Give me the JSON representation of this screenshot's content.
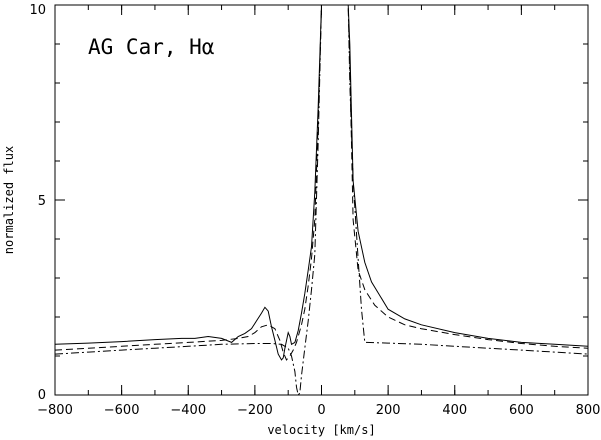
{
  "chart_data": {
    "type": "line",
    "title": "AG Car, Hα",
    "xlabel": "velocity [km/s]",
    "ylabel": "normalized flux",
    "xlim": [
      -800,
      800
    ],
    "ylim": [
      0,
      10
    ],
    "x_ticks": [
      -800,
      -600,
      -400,
      -200,
      0,
      200,
      400,
      600,
      800
    ],
    "y_ticks": [
      0,
      5,
      10
    ],
    "grid": false,
    "legend": "none",
    "series": [
      {
        "style": "solid",
        "x": [
          -800,
          -700,
          -600,
          -500,
          -420,
          -380,
          -340,
          -300,
          -270,
          -250,
          -230,
          -210,
          -195,
          -180,
          -170,
          -160,
          -150,
          -140,
          -130,
          -120,
          -115,
          -110,
          -100,
          -95,
          -90,
          -80,
          -70,
          -60,
          -50,
          -40,
          -30,
          -20,
          -10,
          0,
          5,
          40,
          80,
          85,
          95,
          110,
          130,
          150,
          200,
          250,
          300,
          400,
          500,
          600,
          700,
          800
        ],
        "y": [
          1.3,
          1.33,
          1.37,
          1.42,
          1.45,
          1.45,
          1.5,
          1.45,
          1.35,
          1.5,
          1.58,
          1.7,
          1.9,
          2.1,
          2.25,
          2.15,
          1.75,
          1.4,
          1.05,
          0.9,
          0.95,
          1.2,
          1.6,
          1.5,
          1.3,
          1.35,
          1.65,
          2.1,
          2.6,
          3.2,
          3.8,
          5.2,
          7.4,
          10,
          10,
          10,
          10,
          9.0,
          5.5,
          4.2,
          3.4,
          2.9,
          2.2,
          1.95,
          1.8,
          1.6,
          1.45,
          1.35,
          1.3,
          1.25
        ]
      },
      {
        "style": "dashed",
        "x": [
          -800,
          -700,
          -600,
          -500,
          -400,
          -300,
          -250,
          -220,
          -200,
          -180,
          -160,
          -140,
          -125,
          -115,
          -105,
          -95,
          -85,
          -75,
          -60,
          -50,
          -40,
          -30,
          -20,
          -10,
          0,
          5,
          40,
          80,
          85,
          95,
          110,
          130,
          160,
          200,
          250,
          300,
          400,
          500,
          600,
          700,
          800
        ],
        "y": [
          1.15,
          1.2,
          1.25,
          1.3,
          1.35,
          1.4,
          1.45,
          1.5,
          1.6,
          1.75,
          1.8,
          1.7,
          1.4,
          1.1,
          0.9,
          1.0,
          1.15,
          1.35,
          1.8,
          2.2,
          2.8,
          3.5,
          4.5,
          7.0,
          10,
          10,
          10,
          10,
          8.5,
          4.5,
          3.2,
          2.7,
          2.3,
          2.0,
          1.8,
          1.7,
          1.55,
          1.42,
          1.32,
          1.25,
          1.2
        ]
      },
      {
        "style": "dashdot",
        "x": [
          -800,
          -700,
          -600,
          -500,
          -400,
          -300,
          -200,
          -150,
          -120,
          -100,
          -90,
          -80,
          -75,
          -70,
          -65,
          -60,
          -50,
          -40,
          -30,
          -20,
          -10,
          0,
          5,
          40,
          80,
          85,
          95,
          110,
          120,
          130,
          200,
          300,
          400,
          500,
          600,
          700,
          800
        ],
        "y": [
          1.05,
          1.1,
          1.15,
          1.2,
          1.25,
          1.3,
          1.32,
          1.32,
          1.3,
          1.2,
          1.0,
          0.6,
          0.2,
          0.0,
          0.05,
          0.5,
          1.2,
          1.9,
          2.7,
          3.6,
          6.5,
          10,
          10,
          10,
          10,
          8.0,
          5.5,
          3.5,
          2.2,
          1.35,
          1.33,
          1.3,
          1.25,
          1.2,
          1.15,
          1.1,
          1.05
        ]
      }
    ]
  }
}
